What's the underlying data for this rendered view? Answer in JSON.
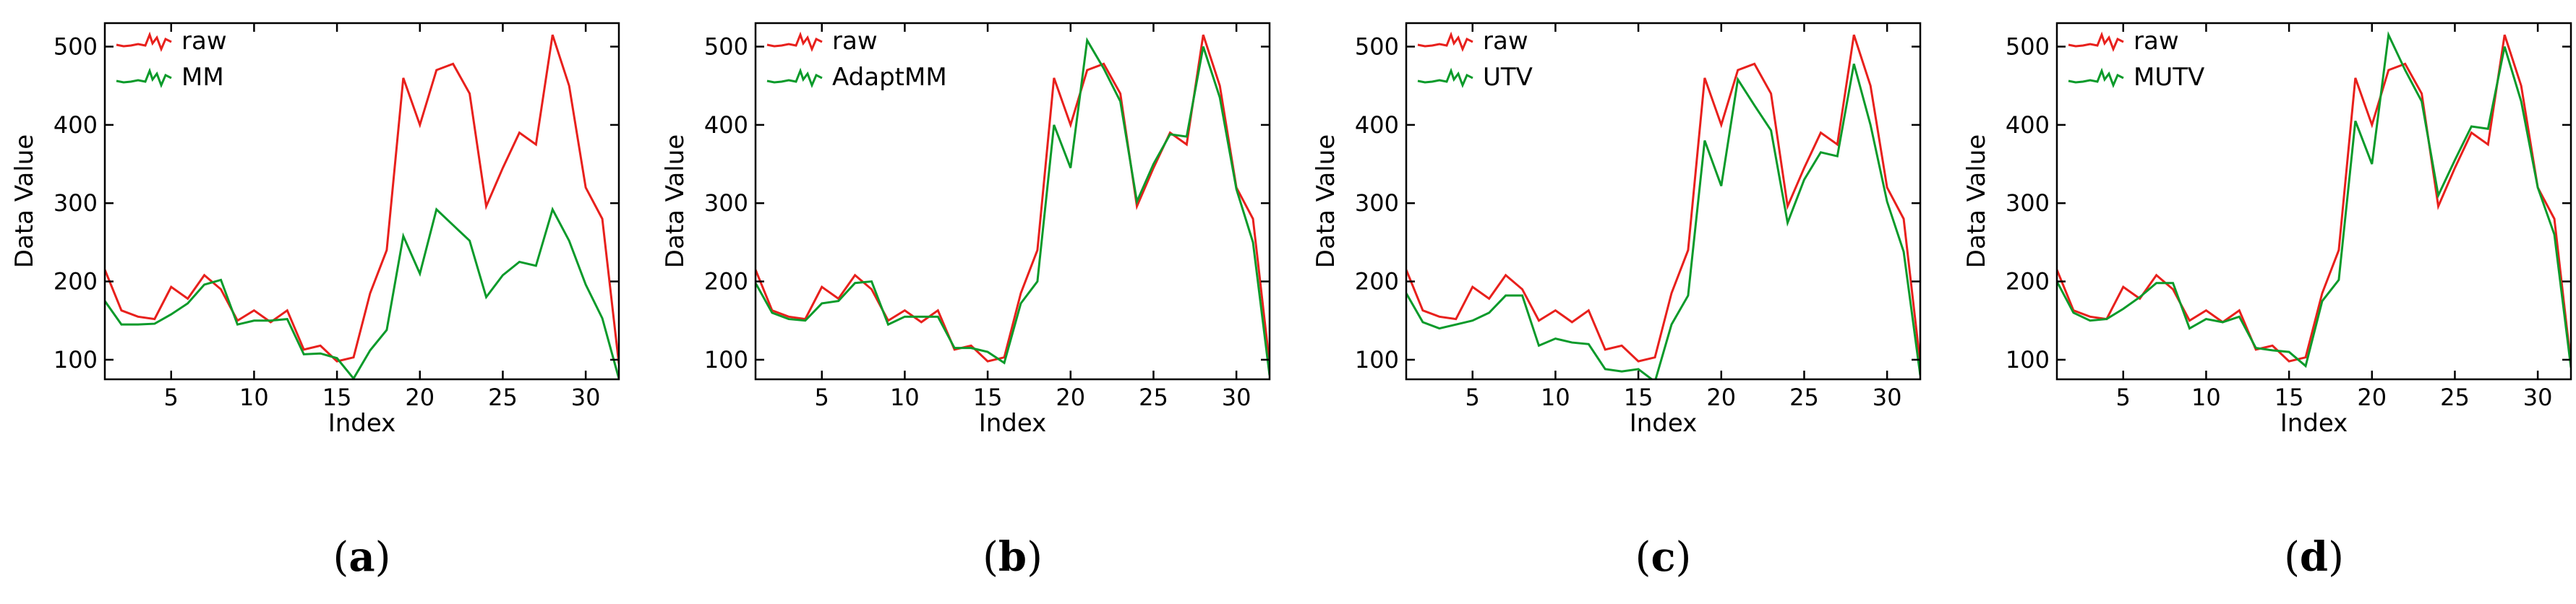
{
  "colors": {
    "raw": "#e8201c",
    "filtered": "#0a9a2a",
    "axis": "#000000"
  },
  "chart_data": [
    {
      "type": "line",
      "caption_letter": "a",
      "xlabel": "Index",
      "ylabel": "Data Value",
      "xlim": [
        1,
        32
      ],
      "ylim": [
        75,
        530
      ],
      "xticks": [
        5,
        10,
        15,
        20,
        25,
        30
      ],
      "yticks": [
        100,
        200,
        300,
        400,
        500
      ],
      "legend_position": "top-left",
      "x": [
        1,
        2,
        3,
        4,
        5,
        6,
        7,
        8,
        9,
        10,
        11,
        12,
        13,
        14,
        15,
        16,
        17,
        18,
        19,
        20,
        21,
        22,
        23,
        24,
        25,
        26,
        27,
        28,
        29,
        30,
        31,
        32
      ],
      "series": [
        {
          "name": "raw",
          "color_key": "raw",
          "values": [
            215,
            163,
            155,
            152,
            193,
            178,
            208,
            190,
            150,
            163,
            148,
            163,
            113,
            118,
            98,
            103,
            185,
            240,
            460,
            400,
            470,
            478,
            440,
            296,
            345,
            390,
            375,
            515,
            450,
            320,
            280,
            95
          ]
        },
        {
          "name": "MM",
          "color_key": "filtered",
          "values": [
            175,
            145,
            145,
            146,
            158,
            172,
            196,
            202,
            145,
            150,
            150,
            152,
            107,
            108,
            102,
            76,
            112,
            138,
            258,
            210,
            292,
            272,
            252,
            180,
            208,
            225,
            220,
            292,
            252,
            196,
            153,
            76
          ]
        }
      ]
    },
    {
      "type": "line",
      "caption_letter": "b",
      "xlabel": "Index",
      "ylabel": "Data Value",
      "xlim": [
        1,
        32
      ],
      "ylim": [
        75,
        530
      ],
      "xticks": [
        5,
        10,
        15,
        20,
        25,
        30
      ],
      "yticks": [
        100,
        200,
        300,
        400,
        500
      ],
      "legend_position": "top-left",
      "x": [
        1,
        2,
        3,
        4,
        5,
        6,
        7,
        8,
        9,
        10,
        11,
        12,
        13,
        14,
        15,
        16,
        17,
        18,
        19,
        20,
        21,
        22,
        23,
        24,
        25,
        26,
        27,
        28,
        29,
        30,
        31,
        32
      ],
      "series": [
        {
          "name": "raw",
          "color_key": "raw",
          "values": [
            215,
            163,
            155,
            152,
            193,
            178,
            208,
            190,
            150,
            163,
            148,
            163,
            113,
            118,
            98,
            103,
            185,
            240,
            460,
            400,
            470,
            478,
            440,
            296,
            345,
            390,
            375,
            515,
            450,
            320,
            280,
            95
          ]
        },
        {
          "name": "AdaptMM",
          "color_key": "filtered",
          "values": [
            198,
            160,
            152,
            150,
            172,
            175,
            198,
            200,
            145,
            155,
            155,
            155,
            115,
            115,
            110,
            96,
            172,
            200,
            400,
            345,
            508,
            472,
            430,
            302,
            350,
            388,
            385,
            500,
            435,
            318,
            250,
            80
          ]
        }
      ]
    },
    {
      "type": "line",
      "caption_letter": "c",
      "xlabel": "Index",
      "ylabel": "Data Value",
      "xlim": [
        1,
        32
      ],
      "ylim": [
        75,
        530
      ],
      "xticks": [
        5,
        10,
        15,
        20,
        25,
        30
      ],
      "yticks": [
        100,
        200,
        300,
        400,
        500
      ],
      "legend_position": "top-left",
      "x": [
        1,
        2,
        3,
        4,
        5,
        6,
        7,
        8,
        9,
        10,
        11,
        12,
        13,
        14,
        15,
        16,
        17,
        18,
        19,
        20,
        21,
        22,
        23,
        24,
        25,
        26,
        27,
        28,
        29,
        30,
        31,
        32
      ],
      "series": [
        {
          "name": "raw",
          "color_key": "raw",
          "values": [
            215,
            163,
            155,
            152,
            193,
            178,
            208,
            190,
            150,
            163,
            148,
            163,
            113,
            118,
            98,
            103,
            185,
            240,
            460,
            400,
            470,
            478,
            440,
            296,
            345,
            390,
            375,
            515,
            450,
            320,
            280,
            95
          ]
        },
        {
          "name": "UTV",
          "color_key": "filtered",
          "values": [
            185,
            148,
            140,
            145,
            150,
            160,
            182,
            182,
            118,
            127,
            122,
            120,
            88,
            85,
            88,
            72,
            145,
            182,
            380,
            322,
            458,
            425,
            393,
            275,
            330,
            365,
            360,
            478,
            400,
            302,
            238,
            80
          ]
        }
      ]
    },
    {
      "type": "line",
      "caption_letter": "d",
      "xlabel": "Index",
      "ylabel": "Data Value",
      "xlim": [
        1,
        32
      ],
      "ylim": [
        75,
        530
      ],
      "xticks": [
        5,
        10,
        15,
        20,
        25,
        30
      ],
      "yticks": [
        100,
        200,
        300,
        400,
        500
      ],
      "legend_position": "top-left",
      "x": [
        1,
        2,
        3,
        4,
        5,
        6,
        7,
        8,
        9,
        10,
        11,
        12,
        13,
        14,
        15,
        16,
        17,
        18,
        19,
        20,
        21,
        22,
        23,
        24,
        25,
        26,
        27,
        28,
        29,
        30,
        31,
        32
      ],
      "series": [
        {
          "name": "raw",
          "color_key": "raw",
          "values": [
            215,
            163,
            155,
            152,
            193,
            178,
            208,
            190,
            150,
            163,
            148,
            163,
            113,
            118,
            98,
            103,
            185,
            240,
            460,
            400,
            470,
            478,
            440,
            296,
            345,
            390,
            375,
            515,
            450,
            320,
            280,
            95
          ]
        },
        {
          "name": "MUTV",
          "color_key": "filtered",
          "values": [
            200,
            160,
            150,
            152,
            165,
            180,
            198,
            198,
            140,
            152,
            148,
            155,
            115,
            112,
            110,
            92,
            175,
            202,
            405,
            350,
            515,
            470,
            430,
            310,
            355,
            398,
            395,
            500,
            430,
            320,
            260,
            90
          ]
        }
      ]
    }
  ]
}
